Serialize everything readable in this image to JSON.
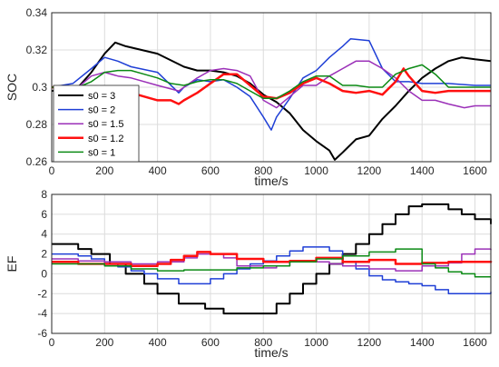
{
  "chart_data": [
    {
      "type": "line",
      "xlabel": "time/s",
      "ylabel": "SOC",
      "xlim": [
        0,
        1660
      ],
      "ylim": [
        0.26,
        0.34
      ],
      "xticks": [
        0,
        200,
        400,
        600,
        800,
        1000,
        1200,
        1400,
        1600
      ],
      "yticks": [
        0.26,
        0.28,
        0.3,
        0.32,
        0.34
      ],
      "ytick_labels": [
        "0.26",
        "0.28",
        "0.3",
        "0.32",
        "0.34"
      ],
      "grid": true,
      "legend": "left",
      "series": [
        {
          "name": "s0 = 3",
          "color": "#000000",
          "width": 2,
          "x": [
            0,
            100,
            150,
            200,
            240,
            280,
            400,
            500,
            550,
            600,
            650,
            700,
            750,
            800,
            850,
            900,
            950,
            1000,
            1050,
            1070,
            1100,
            1150,
            1200,
            1250,
            1300,
            1350,
            1400,
            1450,
            1500,
            1550,
            1600,
            1660
          ],
          "y": [
            0.298,
            0.3,
            0.308,
            0.318,
            0.324,
            0.322,
            0.318,
            0.311,
            0.309,
            0.309,
            0.308,
            0.306,
            0.302,
            0.296,
            0.292,
            0.286,
            0.277,
            0.271,
            0.266,
            0.261,
            0.265,
            0.272,
            0.274,
            0.283,
            0.29,
            0.298,
            0.305,
            0.31,
            0.314,
            0.316,
            0.315,
            0.314
          ]
        },
        {
          "name": "s0 = 2",
          "color": "#1f3fd6",
          "width": 1.5,
          "x": [
            0,
            80,
            150,
            200,
            250,
            300,
            400,
            480,
            500,
            550,
            600,
            650,
            700,
            750,
            800,
            830,
            850,
            900,
            950,
            1000,
            1050,
            1100,
            1130,
            1200,
            1250,
            1300,
            1350,
            1400,
            1500,
            1600,
            1660
          ],
          "y": [
            0.3,
            0.302,
            0.31,
            0.316,
            0.314,
            0.311,
            0.308,
            0.297,
            0.3,
            0.304,
            0.303,
            0.304,
            0.3,
            0.295,
            0.284,
            0.277,
            0.284,
            0.294,
            0.305,
            0.309,
            0.316,
            0.322,
            0.326,
            0.325,
            0.31,
            0.303,
            0.303,
            0.302,
            0.302,
            0.301,
            0.301
          ]
        },
        {
          "name": "s0 = 1.5",
          "color": "#9b30b8",
          "width": 1.5,
          "x": [
            0,
            100,
            150,
            200,
            250,
            300,
            400,
            480,
            500,
            550,
            600,
            650,
            700,
            750,
            800,
            850,
            900,
            950,
            1000,
            1050,
            1100,
            1150,
            1200,
            1250,
            1300,
            1350,
            1400,
            1450,
            1500,
            1560,
            1600,
            1660
          ],
          "y": [
            0.3,
            0.3,
            0.306,
            0.308,
            0.306,
            0.305,
            0.301,
            0.298,
            0.3,
            0.305,
            0.309,
            0.31,
            0.309,
            0.306,
            0.293,
            0.289,
            0.295,
            0.301,
            0.301,
            0.306,
            0.31,
            0.314,
            0.314,
            0.31,
            0.305,
            0.298,
            0.293,
            0.293,
            0.291,
            0.289,
            0.29,
            0.29
          ]
        },
        {
          "name": "s0 = 1.2",
          "color": "#ff1010",
          "width": 2.5,
          "x": [
            0,
            100,
            200,
            250,
            300,
            350,
            400,
            450,
            480,
            500,
            550,
            600,
            650,
            700,
            750,
            800,
            850,
            900,
            950,
            1000,
            1050,
            1100,
            1150,
            1200,
            1250,
            1300,
            1330,
            1350,
            1400,
            1450,
            1500,
            1600,
            1660
          ],
          "y": [
            0.3,
            0.299,
            0.297,
            0.298,
            0.297,
            0.295,
            0.293,
            0.293,
            0.291,
            0.293,
            0.297,
            0.302,
            0.307,
            0.307,
            0.301,
            0.295,
            0.294,
            0.297,
            0.302,
            0.305,
            0.302,
            0.298,
            0.297,
            0.298,
            0.296,
            0.303,
            0.31,
            0.306,
            0.298,
            0.297,
            0.298,
            0.298,
            0.298
          ]
        },
        {
          "name": "s0 = 1",
          "color": "#0b8a14",
          "width": 1.5,
          "x": [
            0,
            100,
            150,
            200,
            250,
            300,
            350,
            400,
            450,
            500,
            550,
            600,
            650,
            700,
            750,
            800,
            850,
            900,
            950,
            1000,
            1050,
            1100,
            1150,
            1200,
            1250,
            1300,
            1350,
            1400,
            1450,
            1500,
            1600,
            1660
          ],
          "y": [
            0.3,
            0.3,
            0.303,
            0.308,
            0.309,
            0.309,
            0.307,
            0.305,
            0.302,
            0.301,
            0.303,
            0.304,
            0.304,
            0.302,
            0.298,
            0.294,
            0.294,
            0.298,
            0.303,
            0.306,
            0.306,
            0.301,
            0.301,
            0.3,
            0.3,
            0.307,
            0.31,
            0.312,
            0.307,
            0.3,
            0.3,
            0.3
          ]
        }
      ]
    },
    {
      "type": "line",
      "xlabel": "time/s",
      "ylabel": "EF",
      "xlim": [
        0,
        1660
      ],
      "ylim": [
        -6,
        8
      ],
      "xticks": [
        0,
        200,
        400,
        600,
        800,
        1000,
        1200,
        1400,
        1600
      ],
      "yticks": [
        -6,
        -4,
        -2,
        0,
        2,
        4,
        6,
        8
      ],
      "ytick_labels": [
        "-6",
        "-4",
        "-2",
        "0",
        "2",
        "4",
        "6",
        "8"
      ],
      "grid": true,
      "series": [
        {
          "name": "s0 = 3",
          "color": "#000000",
          "width": 2,
          "step": true,
          "x": [
            0,
            100,
            150,
            220,
            280,
            350,
            400,
            480,
            580,
            650,
            720,
            800,
            850,
            900,
            950,
            1000,
            1050,
            1100,
            1150,
            1200,
            1250,
            1300,
            1350,
            1400,
            1450,
            1500,
            1550,
            1600,
            1660
          ],
          "y": [
            3,
            2.5,
            2,
            1,
            0,
            -1,
            -2,
            -3,
            -3.5,
            -4,
            -4,
            -4,
            -3,
            -2,
            -1,
            0,
            1,
            2,
            3,
            4,
            5,
            6,
            6.8,
            7,
            7,
            6.5,
            6,
            5.5,
            5
          ]
        },
        {
          "name": "s0 = 2",
          "color": "#1f3fd6",
          "width": 1.5,
          "step": true,
          "x": [
            0,
            100,
            150,
            200,
            250,
            300,
            350,
            400,
            480,
            550,
            600,
            650,
            700,
            750,
            800,
            850,
            900,
            950,
            1050,
            1100,
            1150,
            1200,
            1250,
            1300,
            1350,
            1400,
            1450,
            1500,
            1600,
            1660
          ],
          "y": [
            2,
            1.8,
            1.5,
            1,
            0.7,
            0.3,
            0,
            -0.5,
            -1,
            -1,
            -0.5,
            0,
            0.5,
            1,
            1.3,
            1.8,
            2.3,
            2.7,
            2.3,
            1.2,
            0.5,
            -0.2,
            -0.6,
            -0.8,
            -1,
            -1.2,
            -1.6,
            -2,
            -2,
            -1.8
          ]
        },
        {
          "name": "s0 = 1.5",
          "color": "#9b30b8",
          "width": 1.5,
          "step": true,
          "x": [
            0,
            100,
            200,
            300,
            400,
            500,
            550,
            650,
            700,
            800,
            850,
            900,
            950,
            1050,
            1100,
            1200,
            1300,
            1400,
            1500,
            1550,
            1600,
            1660
          ],
          "y": [
            1.5,
            1.3,
            1.2,
            1,
            1.2,
            1.6,
            2,
            1.6,
            0.8,
            0.6,
            0.8,
            1.2,
            1.2,
            1,
            0.8,
            0.5,
            0.3,
            0.8,
            1.1,
            2,
            2.5,
            2.4
          ]
        },
        {
          "name": "s0 = 1.2",
          "color": "#ff1010",
          "width": 2.5,
          "step": true,
          "x": [
            0,
            100,
            200,
            300,
            400,
            450,
            500,
            550,
            600,
            700,
            800,
            900,
            1000,
            1100,
            1200,
            1300,
            1400,
            1500,
            1600,
            1660
          ],
          "y": [
            1.2,
            1,
            1,
            0.8,
            1,
            1.4,
            1.8,
            2.2,
            2,
            1.5,
            1.2,
            1.3,
            1.6,
            1.2,
            1.4,
            1,
            1.1,
            1.2,
            1.2,
            1.3
          ]
        },
        {
          "name": "s0 = 1",
          "color": "#0b8a14",
          "width": 1.5,
          "step": true,
          "x": [
            0,
            100,
            200,
            300,
            400,
            500,
            600,
            700,
            800,
            900,
            1000,
            1100,
            1200,
            1300,
            1400,
            1450,
            1500,
            1550,
            1600,
            1660
          ],
          "y": [
            1,
            1,
            0.8,
            0.5,
            0.3,
            0.4,
            0.4,
            0.6,
            0.8,
            1.2,
            1.5,
            1.8,
            2.2,
            2.5,
            1,
            0.6,
            0.2,
            0,
            -0.3,
            -0.3
          ]
        }
      ]
    }
  ]
}
